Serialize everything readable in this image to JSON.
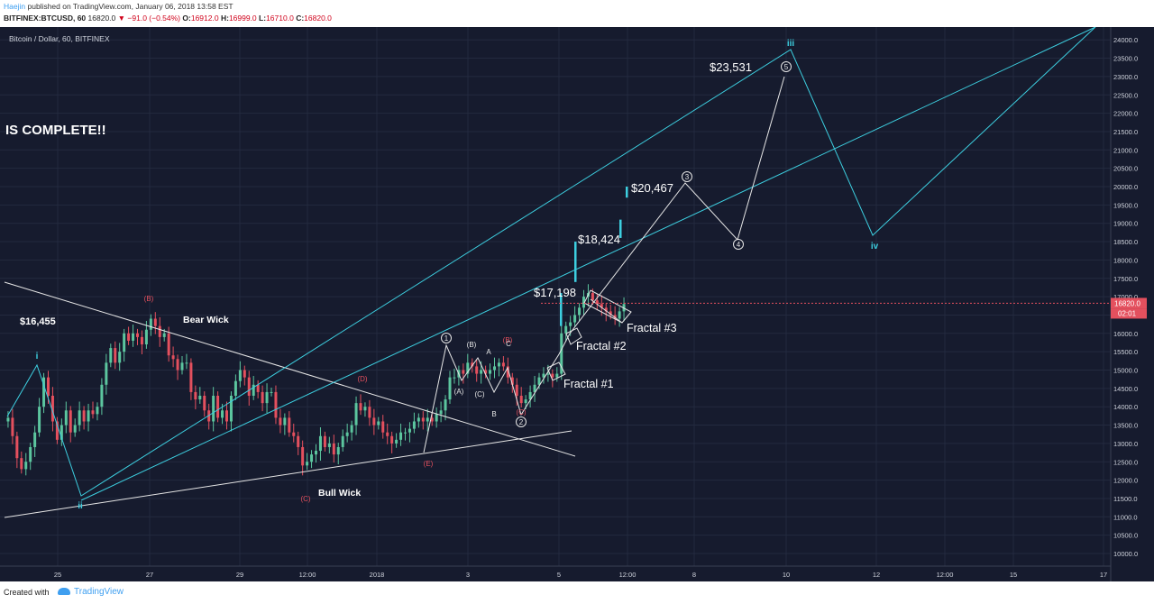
{
  "header": {
    "author": "Haejin",
    "published": "published on TradingView.com, January 06, 2018 13:58 EST",
    "symbol": "BITFINEX:BTCUSD, 60",
    "price": "16820.0",
    "change": "▼ −91.0 (−0.54%)",
    "o_label": "O:",
    "o_value": "16912.0",
    "h_label": "H:",
    "h_value": "16999.0",
    "l_label": "L:",
    "l_value": "16710.0",
    "c_label": "C:",
    "c_value": "16820.0"
  },
  "footer": {
    "created": "Created with",
    "brand": "TradingView"
  },
  "colors": {
    "background": "#161b2e",
    "up": "#5cc69f",
    "down": "#e4505e",
    "annotation_cyan": "#3dcfe0",
    "annotation_white": "#e6e6e6",
    "label_red": "#e4505e"
  },
  "chart_data": {
    "type": "candlestick",
    "title": "Bitcoin / Dollar, 60, BITFINEX",
    "ylim": [
      9600,
      24500
    ],
    "y_ticks": [
      "10000.0",
      "10500.0",
      "11000.0",
      "11500.0",
      "12000.0",
      "12500.0",
      "13000.0",
      "13500.0",
      "14000.0",
      "14500.0",
      "15000.0",
      "15500.0",
      "16000.0",
      "16500.0",
      "17000.0",
      "17500.0",
      "18000.0",
      "18500.0",
      "19000.0",
      "19500.0",
      "20000.0",
      "20500.0",
      "21000.0",
      "21500.0",
      "22000.0",
      "22500.0",
      "23000.0",
      "23500.0",
      "24000.0"
    ],
    "x_ticks": [
      "25",
      "27",
      "29",
      "12:00",
      "2018",
      "3",
      "5",
      "12:00",
      "8",
      "10",
      "12",
      "12:00",
      "15",
      "17"
    ],
    "current_price": "16820.0",
    "countdown": "02:01",
    "candle_path": [
      [
        0,
        13600
      ],
      [
        5,
        13700
      ],
      [
        10,
        13200
      ],
      [
        15,
        12600
      ],
      [
        20,
        12300
      ],
      [
        25,
        12500
      ],
      [
        30,
        12900
      ],
      [
        35,
        13300
      ],
      [
        40,
        14000
      ],
      [
        45,
        14800
      ],
      [
        50,
        14300
      ],
      [
        55,
        13600
      ],
      [
        60,
        13100
      ],
      [
        65,
        13500
      ],
      [
        70,
        13900
      ],
      [
        75,
        13300
      ],
      [
        80,
        13500
      ],
      [
        85,
        13900
      ],
      [
        90,
        13600
      ],
      [
        95,
        13900
      ],
      [
        100,
        13800
      ],
      [
        105,
        14000
      ],
      [
        110,
        14600
      ],
      [
        115,
        15200
      ],
      [
        120,
        15600
      ],
      [
        125,
        15200
      ],
      [
        130,
        15500
      ],
      [
        135,
        16000
      ],
      [
        140,
        15800
      ],
      [
        145,
        16000
      ],
      [
        150,
        15900
      ],
      [
        155,
        15700
      ],
      [
        160,
        16100
      ],
      [
        165,
        16400
      ],
      [
        170,
        16200
      ],
      [
        175,
        15900
      ],
      [
        180,
        16000
      ],
      [
        185,
        15400
      ],
      [
        190,
        15300
      ],
      [
        195,
        15000
      ],
      [
        200,
        15200
      ],
      [
        205,
        15200
      ],
      [
        210,
        14400
      ],
      [
        215,
        14200
      ],
      [
        220,
        14300
      ],
      [
        225,
        13900
      ],
      [
        230,
        13600
      ],
      [
        235,
        14300
      ],
      [
        240,
        13700
      ],
      [
        245,
        13900
      ],
      [
        250,
        13600
      ],
      [
        255,
        14300
      ],
      [
        260,
        14700
      ],
      [
        265,
        15000
      ],
      [
        270,
        14800
      ],
      [
        275,
        14300
      ],
      [
        280,
        14600
      ],
      [
        285,
        14400
      ],
      [
        290,
        14100
      ],
      [
        295,
        14400
      ],
      [
        300,
        14400
      ],
      [
        305,
        13700
      ],
      [
        310,
        13500
      ],
      [
        315,
        13700
      ],
      [
        320,
        13300
      ],
      [
        325,
        13200
      ],
      [
        330,
        12900
      ],
      [
        335,
        12400
      ],
      [
        340,
        12500
      ],
      [
        345,
        12700
      ],
      [
        350,
        12800
      ],
      [
        355,
        13200
      ],
      [
        360,
        12900
      ],
      [
        365,
        13000
      ],
      [
        370,
        12700
      ],
      [
        375,
        12900
      ],
      [
        380,
        13200
      ],
      [
        385,
        13300
      ],
      [
        390,
        13500
      ],
      [
        395,
        14100
      ],
      [
        400,
        13900
      ],
      [
        405,
        14000
      ],
      [
        410,
        13700
      ],
      [
        415,
        13500
      ],
      [
        420,
        13600
      ],
      [
        425,
        13300
      ],
      [
        430,
        13200
      ],
      [
        435,
        13000
      ],
      [
        440,
        13100
      ],
      [
        445,
        13300
      ],
      [
        450,
        13300
      ],
      [
        455,
        13400
      ],
      [
        460,
        13600
      ],
      [
        465,
        13700
      ],
      [
        470,
        13600
      ],
      [
        475,
        13700
      ],
      [
        480,
        13600
      ],
      [
        485,
        13800
      ],
      [
        490,
        13900
      ],
      [
        495,
        14200
      ],
      [
        500,
        14800
      ],
      [
        505,
        14800
      ],
      [
        510,
        15000
      ],
      [
        515,
        14900
      ],
      [
        520,
        15200
      ],
      [
        525,
        15100
      ],
      [
        530,
        14900
      ],
      [
        535,
        15000
      ],
      [
        540,
        14900
      ],
      [
        545,
        15000
      ],
      [
        550,
        15100
      ],
      [
        555,
        15200
      ],
      [
        560,
        15100
      ],
      [
        565,
        14800
      ],
      [
        570,
        14600
      ],
      [
        575,
        14300
      ],
      [
        580,
        14100
      ],
      [
        585,
        14200
      ],
      [
        590,
        14400
      ],
      [
        595,
        14600
      ],
      [
        600,
        14800
      ],
      [
        605,
        14900
      ],
      [
        610,
        14900
      ],
      [
        615,
        14800
      ],
      [
        620,
        14900
      ],
      [
        625,
        16000
      ],
      [
        630,
        16200
      ],
      [
        635,
        16300
      ],
      [
        640,
        16500
      ],
      [
        645,
        16700
      ],
      [
        650,
        17000
      ],
      [
        655,
        17100
      ],
      [
        660,
        16900
      ],
      [
        665,
        16800
      ],
      [
        670,
        16700
      ],
      [
        675,
        16600
      ],
      [
        680,
        16500
      ],
      [
        685,
        16400
      ],
      [
        690,
        16600
      ],
      [
        695,
        16800
      ]
    ],
    "fractal_spikes": [
      {
        "low": 16200,
        "high": 17100
      },
      {
        "low": 17400,
        "high": 18500
      },
      {
        "low": 18600,
        "high": 19100
      },
      {
        "low": 19700,
        "high": 20000
      }
    ],
    "price_labels": [
      "$16,455",
      "$17,198",
      "$18,424",
      "$20,467",
      "$23,531"
    ],
    "annotations": {
      "headline": "IS COMPLETE!!",
      "bear_wick": "Bear Wick",
      "bull_wick": "Bull Wick",
      "fractal_1": "Fractal #1",
      "fractal_2": "Fractal #2",
      "fractal_3": "Fractal #3",
      "wave_i": "i",
      "wave_ii": "ii",
      "wave_iii": "iii",
      "wave_iv": "iv",
      "triangle_labels": [
        "(B)",
        "(C)",
        "(D)",
        "(E)"
      ],
      "abc_white": [
        "(A)",
        "(B)",
        "(C)",
        "A",
        "B",
        "C"
      ],
      "red_letters": [
        "(B)",
        "(C)",
        "(D)",
        "(E)",
        "(B)",
        "(C)"
      ],
      "circled_waves": [
        "1",
        "2",
        "3",
        "4",
        "5"
      ]
    }
  }
}
